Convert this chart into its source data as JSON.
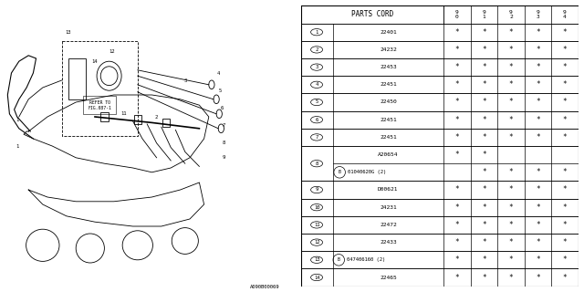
{
  "bg_color": "#ffffff",
  "line_color": "#000000",
  "table": {
    "header": "PARTS CORD",
    "year_cols": [
      "9\n0",
      "9\n1",
      "9\n2",
      "9\n3",
      "9\n4"
    ],
    "rows": [
      {
        "label": "1",
        "part": "22401",
        "b_prefix": false,
        "stars": [
          1,
          1,
          1,
          1,
          1
        ],
        "sub": null
      },
      {
        "label": "2",
        "part": "24232",
        "b_prefix": false,
        "stars": [
          1,
          1,
          1,
          1,
          1
        ],
        "sub": null
      },
      {
        "label": "3",
        "part": "22453",
        "b_prefix": false,
        "stars": [
          1,
          1,
          1,
          1,
          1
        ],
        "sub": null
      },
      {
        "label": "4",
        "part": "22451",
        "b_prefix": false,
        "stars": [
          1,
          1,
          1,
          1,
          1
        ],
        "sub": null
      },
      {
        "label": "5",
        "part": "22450",
        "b_prefix": false,
        "stars": [
          1,
          1,
          1,
          1,
          1
        ],
        "sub": null
      },
      {
        "label": "6",
        "part": "22451",
        "b_prefix": false,
        "stars": [
          1,
          1,
          1,
          1,
          1
        ],
        "sub": null
      },
      {
        "label": "7",
        "part": "22451",
        "b_prefix": false,
        "stars": [
          1,
          1,
          1,
          1,
          1
        ],
        "sub": null
      },
      {
        "label": "8",
        "part": null,
        "b_prefix": false,
        "stars": null,
        "sub": [
          {
            "part": "A20654",
            "b_prefix": false,
            "stars": [
              1,
              1,
              0,
              0,
              0
            ]
          },
          {
            "part": "01040620G (2)",
            "b_prefix": true,
            "stars": [
              0,
              1,
              1,
              1,
              1
            ]
          }
        ]
      },
      {
        "label": "9",
        "part": "D00621",
        "b_prefix": false,
        "stars": [
          1,
          1,
          1,
          1,
          1
        ],
        "sub": null
      },
      {
        "label": "10",
        "part": "24231",
        "b_prefix": false,
        "stars": [
          1,
          1,
          1,
          1,
          1
        ],
        "sub": null
      },
      {
        "label": "11",
        "part": "22472",
        "b_prefix": false,
        "stars": [
          1,
          1,
          1,
          1,
          1
        ],
        "sub": null
      },
      {
        "label": "12",
        "part": "22433",
        "b_prefix": false,
        "stars": [
          1,
          1,
          1,
          1,
          1
        ],
        "sub": null
      },
      {
        "label": "13",
        "part": "047406160 (2)",
        "b_prefix": true,
        "stars": [
          1,
          1,
          1,
          1,
          1
        ],
        "sub": null
      },
      {
        "label": "14",
        "part": "22465",
        "b_prefix": false,
        "stars": [
          1,
          1,
          1,
          1,
          1
        ],
        "sub": null
      }
    ]
  },
  "diagram_code": "A090B00069"
}
